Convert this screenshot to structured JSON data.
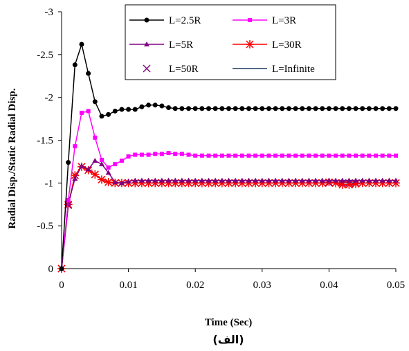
{
  "chart_data": {
    "type": "line",
    "xlabel": "Time (Sec)",
    "ylabel": "Radial Disp./Static Radial Disp.",
    "caption": "(الف)",
    "xlim": [
      0,
      0.05
    ],
    "ylim": [
      0,
      -3
    ],
    "y_inverted": true,
    "x_ticks": [
      0,
      0.01,
      0.02,
      0.03,
      0.04,
      0.05
    ],
    "x_tick_labels": [
      "0",
      "0.01",
      "0.02",
      "0.03",
      "0.04",
      "0.05"
    ],
    "y_ticks": [
      0,
      -0.5,
      -1,
      -1.5,
      -2,
      -2.5,
      -3
    ],
    "y_tick_labels": [
      "0",
      "-0.5",
      "-1",
      "-1.5",
      "-2",
      "-2.5",
      "-3"
    ],
    "grid": false,
    "legend_position": "top-right",
    "series": [
      {
        "name": "L=2.5R",
        "color": "#000000",
        "marker": "circle",
        "points": [
          [
            0,
            0
          ],
          [
            0.001,
            -1.24
          ],
          [
            0.002,
            -2.38
          ],
          [
            0.003,
            -2.62
          ],
          [
            0.004,
            -2.28
          ],
          [
            0.005,
            -1.95
          ],
          [
            0.006,
            -1.78
          ],
          [
            0.007,
            -1.8
          ],
          [
            0.008,
            -1.84
          ],
          [
            0.009,
            -1.86
          ],
          [
            0.01,
            -1.86
          ],
          [
            0.011,
            -1.86
          ],
          [
            0.012,
            -1.89
          ],
          [
            0.013,
            -1.91
          ],
          [
            0.014,
            -1.91
          ],
          [
            0.015,
            -1.9
          ],
          [
            0.016,
            -1.88
          ],
          [
            0.017,
            -1.87
          ],
          [
            0.018,
            -1.87
          ],
          [
            0.019,
            -1.87
          ],
          [
            0.02,
            -1.87
          ],
          [
            0.021,
            -1.87
          ],
          [
            0.022,
            -1.87
          ],
          [
            0.023,
            -1.87
          ],
          [
            0.024,
            -1.87
          ],
          [
            0.025,
            -1.87
          ],
          [
            0.026,
            -1.87
          ],
          [
            0.027,
            -1.87
          ],
          [
            0.028,
            -1.87
          ],
          [
            0.029,
            -1.87
          ],
          [
            0.03,
            -1.87
          ],
          [
            0.031,
            -1.87
          ],
          [
            0.032,
            -1.87
          ],
          [
            0.033,
            -1.87
          ],
          [
            0.034,
            -1.87
          ],
          [
            0.035,
            -1.87
          ],
          [
            0.036,
            -1.87
          ],
          [
            0.037,
            -1.87
          ],
          [
            0.038,
            -1.87
          ],
          [
            0.039,
            -1.87
          ],
          [
            0.04,
            -1.87
          ],
          [
            0.041,
            -1.87
          ],
          [
            0.042,
            -1.87
          ],
          [
            0.043,
            -1.87
          ],
          [
            0.044,
            -1.87
          ],
          [
            0.045,
            -1.87
          ],
          [
            0.046,
            -1.87
          ],
          [
            0.047,
            -1.87
          ],
          [
            0.048,
            -1.87
          ],
          [
            0.049,
            -1.87
          ],
          [
            0.05,
            -1.87
          ]
        ]
      },
      {
        "name": "L=3R",
        "color": "#ff00ff",
        "marker": "square",
        "points": [
          [
            0,
            0
          ],
          [
            0.001,
            -0.8
          ],
          [
            0.002,
            -1.43
          ],
          [
            0.003,
            -1.82
          ],
          [
            0.004,
            -1.84
          ],
          [
            0.005,
            -1.53
          ],
          [
            0.006,
            -1.27
          ],
          [
            0.007,
            -1.18
          ],
          [
            0.008,
            -1.22
          ],
          [
            0.009,
            -1.26
          ],
          [
            0.01,
            -1.31
          ],
          [
            0.011,
            -1.33
          ],
          [
            0.012,
            -1.33
          ],
          [
            0.013,
            -1.33
          ],
          [
            0.014,
            -1.34
          ],
          [
            0.015,
            -1.34
          ],
          [
            0.016,
            -1.35
          ],
          [
            0.017,
            -1.34
          ],
          [
            0.018,
            -1.34
          ],
          [
            0.019,
            -1.33
          ],
          [
            0.02,
            -1.32
          ],
          [
            0.021,
            -1.32
          ],
          [
            0.022,
            -1.32
          ],
          [
            0.023,
            -1.32
          ],
          [
            0.024,
            -1.32
          ],
          [
            0.025,
            -1.32
          ],
          [
            0.026,
            -1.32
          ],
          [
            0.027,
            -1.32
          ],
          [
            0.028,
            -1.32
          ],
          [
            0.029,
            -1.32
          ],
          [
            0.03,
            -1.32
          ],
          [
            0.031,
            -1.32
          ],
          [
            0.032,
            -1.32
          ],
          [
            0.033,
            -1.32
          ],
          [
            0.034,
            -1.32
          ],
          [
            0.035,
            -1.32
          ],
          [
            0.036,
            -1.32
          ],
          [
            0.037,
            -1.32
          ],
          [
            0.038,
            -1.32
          ],
          [
            0.039,
            -1.32
          ],
          [
            0.04,
            -1.32
          ],
          [
            0.041,
            -1.32
          ],
          [
            0.042,
            -1.32
          ],
          [
            0.043,
            -1.32
          ],
          [
            0.044,
            -1.32
          ],
          [
            0.045,
            -1.32
          ],
          [
            0.046,
            -1.32
          ],
          [
            0.047,
            -1.32
          ],
          [
            0.048,
            -1.32
          ],
          [
            0.049,
            -1.32
          ],
          [
            0.05,
            -1.32
          ]
        ]
      },
      {
        "name": "L=5R",
        "color": "#800080",
        "marker": "triangle",
        "points": [
          [
            0,
            0
          ],
          [
            0.001,
            -0.76
          ],
          [
            0.002,
            -1.05
          ],
          [
            0.003,
            -1.2
          ],
          [
            0.004,
            -1.16
          ],
          [
            0.005,
            -1.26
          ],
          [
            0.006,
            -1.22
          ],
          [
            0.007,
            -1.12
          ],
          [
            0.008,
            -1.01
          ],
          [
            0.009,
            -1.0
          ],
          [
            0.01,
            -1.02
          ],
          [
            0.011,
            -1.03
          ],
          [
            0.012,
            -1.03
          ],
          [
            0.013,
            -1.03
          ],
          [
            0.014,
            -1.03
          ],
          [
            0.015,
            -1.03
          ],
          [
            0.016,
            -1.03
          ],
          [
            0.017,
            -1.03
          ],
          [
            0.018,
            -1.03
          ],
          [
            0.019,
            -1.03
          ],
          [
            0.02,
            -1.03
          ],
          [
            0.021,
            -1.03
          ],
          [
            0.022,
            -1.03
          ],
          [
            0.023,
            -1.03
          ],
          [
            0.024,
            -1.03
          ],
          [
            0.025,
            -1.03
          ],
          [
            0.026,
            -1.03
          ],
          [
            0.027,
            -1.03
          ],
          [
            0.028,
            -1.03
          ],
          [
            0.029,
            -1.03
          ],
          [
            0.03,
            -1.03
          ],
          [
            0.031,
            -1.03
          ],
          [
            0.032,
            -1.03
          ],
          [
            0.033,
            -1.03
          ],
          [
            0.034,
            -1.03
          ],
          [
            0.035,
            -1.03
          ],
          [
            0.036,
            -1.03
          ],
          [
            0.037,
            -1.03
          ],
          [
            0.038,
            -1.03
          ],
          [
            0.039,
            -1.03
          ],
          [
            0.04,
            -1.03
          ],
          [
            0.041,
            -1.03
          ],
          [
            0.042,
            -1.03
          ],
          [
            0.043,
            -1.03
          ],
          [
            0.044,
            -1.03
          ],
          [
            0.045,
            -1.03
          ],
          [
            0.046,
            -1.03
          ],
          [
            0.047,
            -1.03
          ],
          [
            0.048,
            -1.03
          ],
          [
            0.049,
            -1.03
          ],
          [
            0.05,
            -1.03
          ]
        ]
      },
      {
        "name": "L=30R",
        "color": "#ff0000",
        "marker": "asterisk",
        "points": [
          [
            0,
            0
          ],
          [
            0.001,
            -0.75
          ],
          [
            0.002,
            -1.09
          ],
          [
            0.003,
            -1.19
          ],
          [
            0.004,
            -1.15
          ],
          [
            0.005,
            -1.1
          ],
          [
            0.006,
            -1.04
          ],
          [
            0.007,
            -1.01
          ],
          [
            0.008,
            -1.0
          ],
          [
            0.009,
            -1.0
          ],
          [
            0.01,
            -1.0
          ],
          [
            0.011,
            -1.0
          ],
          [
            0.012,
            -1.0
          ],
          [
            0.013,
            -1.0
          ],
          [
            0.014,
            -1.0
          ],
          [
            0.015,
            -1.0
          ],
          [
            0.016,
            -1.0
          ],
          [
            0.017,
            -1.0
          ],
          [
            0.018,
            -1.0
          ],
          [
            0.019,
            -1.0
          ],
          [
            0.02,
            -1.0
          ],
          [
            0.021,
            -1.0
          ],
          [
            0.022,
            -1.0
          ],
          [
            0.023,
            -1.0
          ],
          [
            0.024,
            -1.0
          ],
          [
            0.025,
            -1.0
          ],
          [
            0.026,
            -1.0
          ],
          [
            0.027,
            -1.0
          ],
          [
            0.028,
            -1.0
          ],
          [
            0.029,
            -1.0
          ],
          [
            0.03,
            -1.0
          ],
          [
            0.031,
            -1.0
          ],
          [
            0.032,
            -1.0
          ],
          [
            0.033,
            -1.0
          ],
          [
            0.034,
            -1.0
          ],
          [
            0.035,
            -1.0
          ],
          [
            0.036,
            -1.0
          ],
          [
            0.037,
            -1.0
          ],
          [
            0.038,
            -1.0
          ],
          [
            0.039,
            -1.0
          ],
          [
            0.04,
            -1.01
          ],
          [
            0.041,
            -1.0
          ],
          [
            0.042,
            -0.98
          ],
          [
            0.043,
            -0.98
          ],
          [
            0.044,
            -0.99
          ],
          [
            0.045,
            -1.0
          ],
          [
            0.046,
            -1.0
          ],
          [
            0.047,
            -1.0
          ],
          [
            0.048,
            -1.0
          ],
          [
            0.049,
            -1.0
          ],
          [
            0.05,
            -1.0
          ]
        ]
      },
      {
        "name": "L=50R",
        "color": "#800080",
        "marker": "x",
        "points": [
          [
            0,
            0
          ],
          [
            0.001,
            -0.74
          ],
          [
            0.002,
            -1.09
          ],
          [
            0.003,
            -1.19
          ],
          [
            0.004,
            -1.15
          ],
          [
            0.005,
            -1.1
          ],
          [
            0.006,
            -1.04
          ],
          [
            0.007,
            -1.01
          ],
          [
            0.008,
            -1.0
          ],
          [
            0.009,
            -1.0
          ],
          [
            0.01,
            -1.0
          ],
          [
            0.011,
            -1.0
          ],
          [
            0.012,
            -1.0
          ],
          [
            0.013,
            -1.0
          ],
          [
            0.014,
            -1.0
          ],
          [
            0.015,
            -1.0
          ],
          [
            0.016,
            -1.0
          ],
          [
            0.017,
            -1.0
          ],
          [
            0.018,
            -1.0
          ],
          [
            0.019,
            -1.0
          ],
          [
            0.02,
            -1.0
          ],
          [
            0.021,
            -1.0
          ],
          [
            0.022,
            -1.0
          ],
          [
            0.023,
            -1.0
          ],
          [
            0.024,
            -1.0
          ],
          [
            0.025,
            -1.0
          ],
          [
            0.026,
            -1.0
          ],
          [
            0.027,
            -1.0
          ],
          [
            0.028,
            -1.0
          ],
          [
            0.029,
            -1.0
          ],
          [
            0.03,
            -1.0
          ],
          [
            0.031,
            -1.0
          ],
          [
            0.032,
            -1.0
          ],
          [
            0.033,
            -1.0
          ],
          [
            0.034,
            -1.0
          ],
          [
            0.035,
            -1.0
          ],
          [
            0.036,
            -1.0
          ],
          [
            0.037,
            -1.0
          ],
          [
            0.038,
            -1.0
          ],
          [
            0.039,
            -1.0
          ],
          [
            0.04,
            -1.0
          ],
          [
            0.041,
            -1.0
          ],
          [
            0.042,
            -1.0
          ],
          [
            0.043,
            -1.0
          ],
          [
            0.044,
            -1.0
          ],
          [
            0.045,
            -1.0
          ],
          [
            0.046,
            -1.0
          ],
          [
            0.047,
            -1.0
          ],
          [
            0.048,
            -1.0
          ],
          [
            0.049,
            -1.0
          ],
          [
            0.05,
            -1.0
          ]
        ]
      },
      {
        "name": "L=Infinite",
        "color": "#1f3864",
        "marker": "none",
        "points": [
          [
            0,
            0
          ],
          [
            0.001,
            -0.74
          ],
          [
            0.002,
            -1.09
          ],
          [
            0.003,
            -1.19
          ],
          [
            0.004,
            -1.15
          ],
          [
            0.005,
            -1.1
          ],
          [
            0.006,
            -1.04
          ],
          [
            0.007,
            -1.01
          ],
          [
            0.008,
            -1.0
          ],
          [
            0.009,
            -1.0
          ],
          [
            0.01,
            -1.0
          ],
          [
            0.015,
            -1.0
          ],
          [
            0.02,
            -1.0
          ],
          [
            0.025,
            -1.0
          ],
          [
            0.03,
            -1.0
          ],
          [
            0.035,
            -1.0
          ],
          [
            0.04,
            -1.0
          ],
          [
            0.045,
            -1.0
          ],
          [
            0.05,
            -1.0
          ]
        ]
      }
    ]
  }
}
